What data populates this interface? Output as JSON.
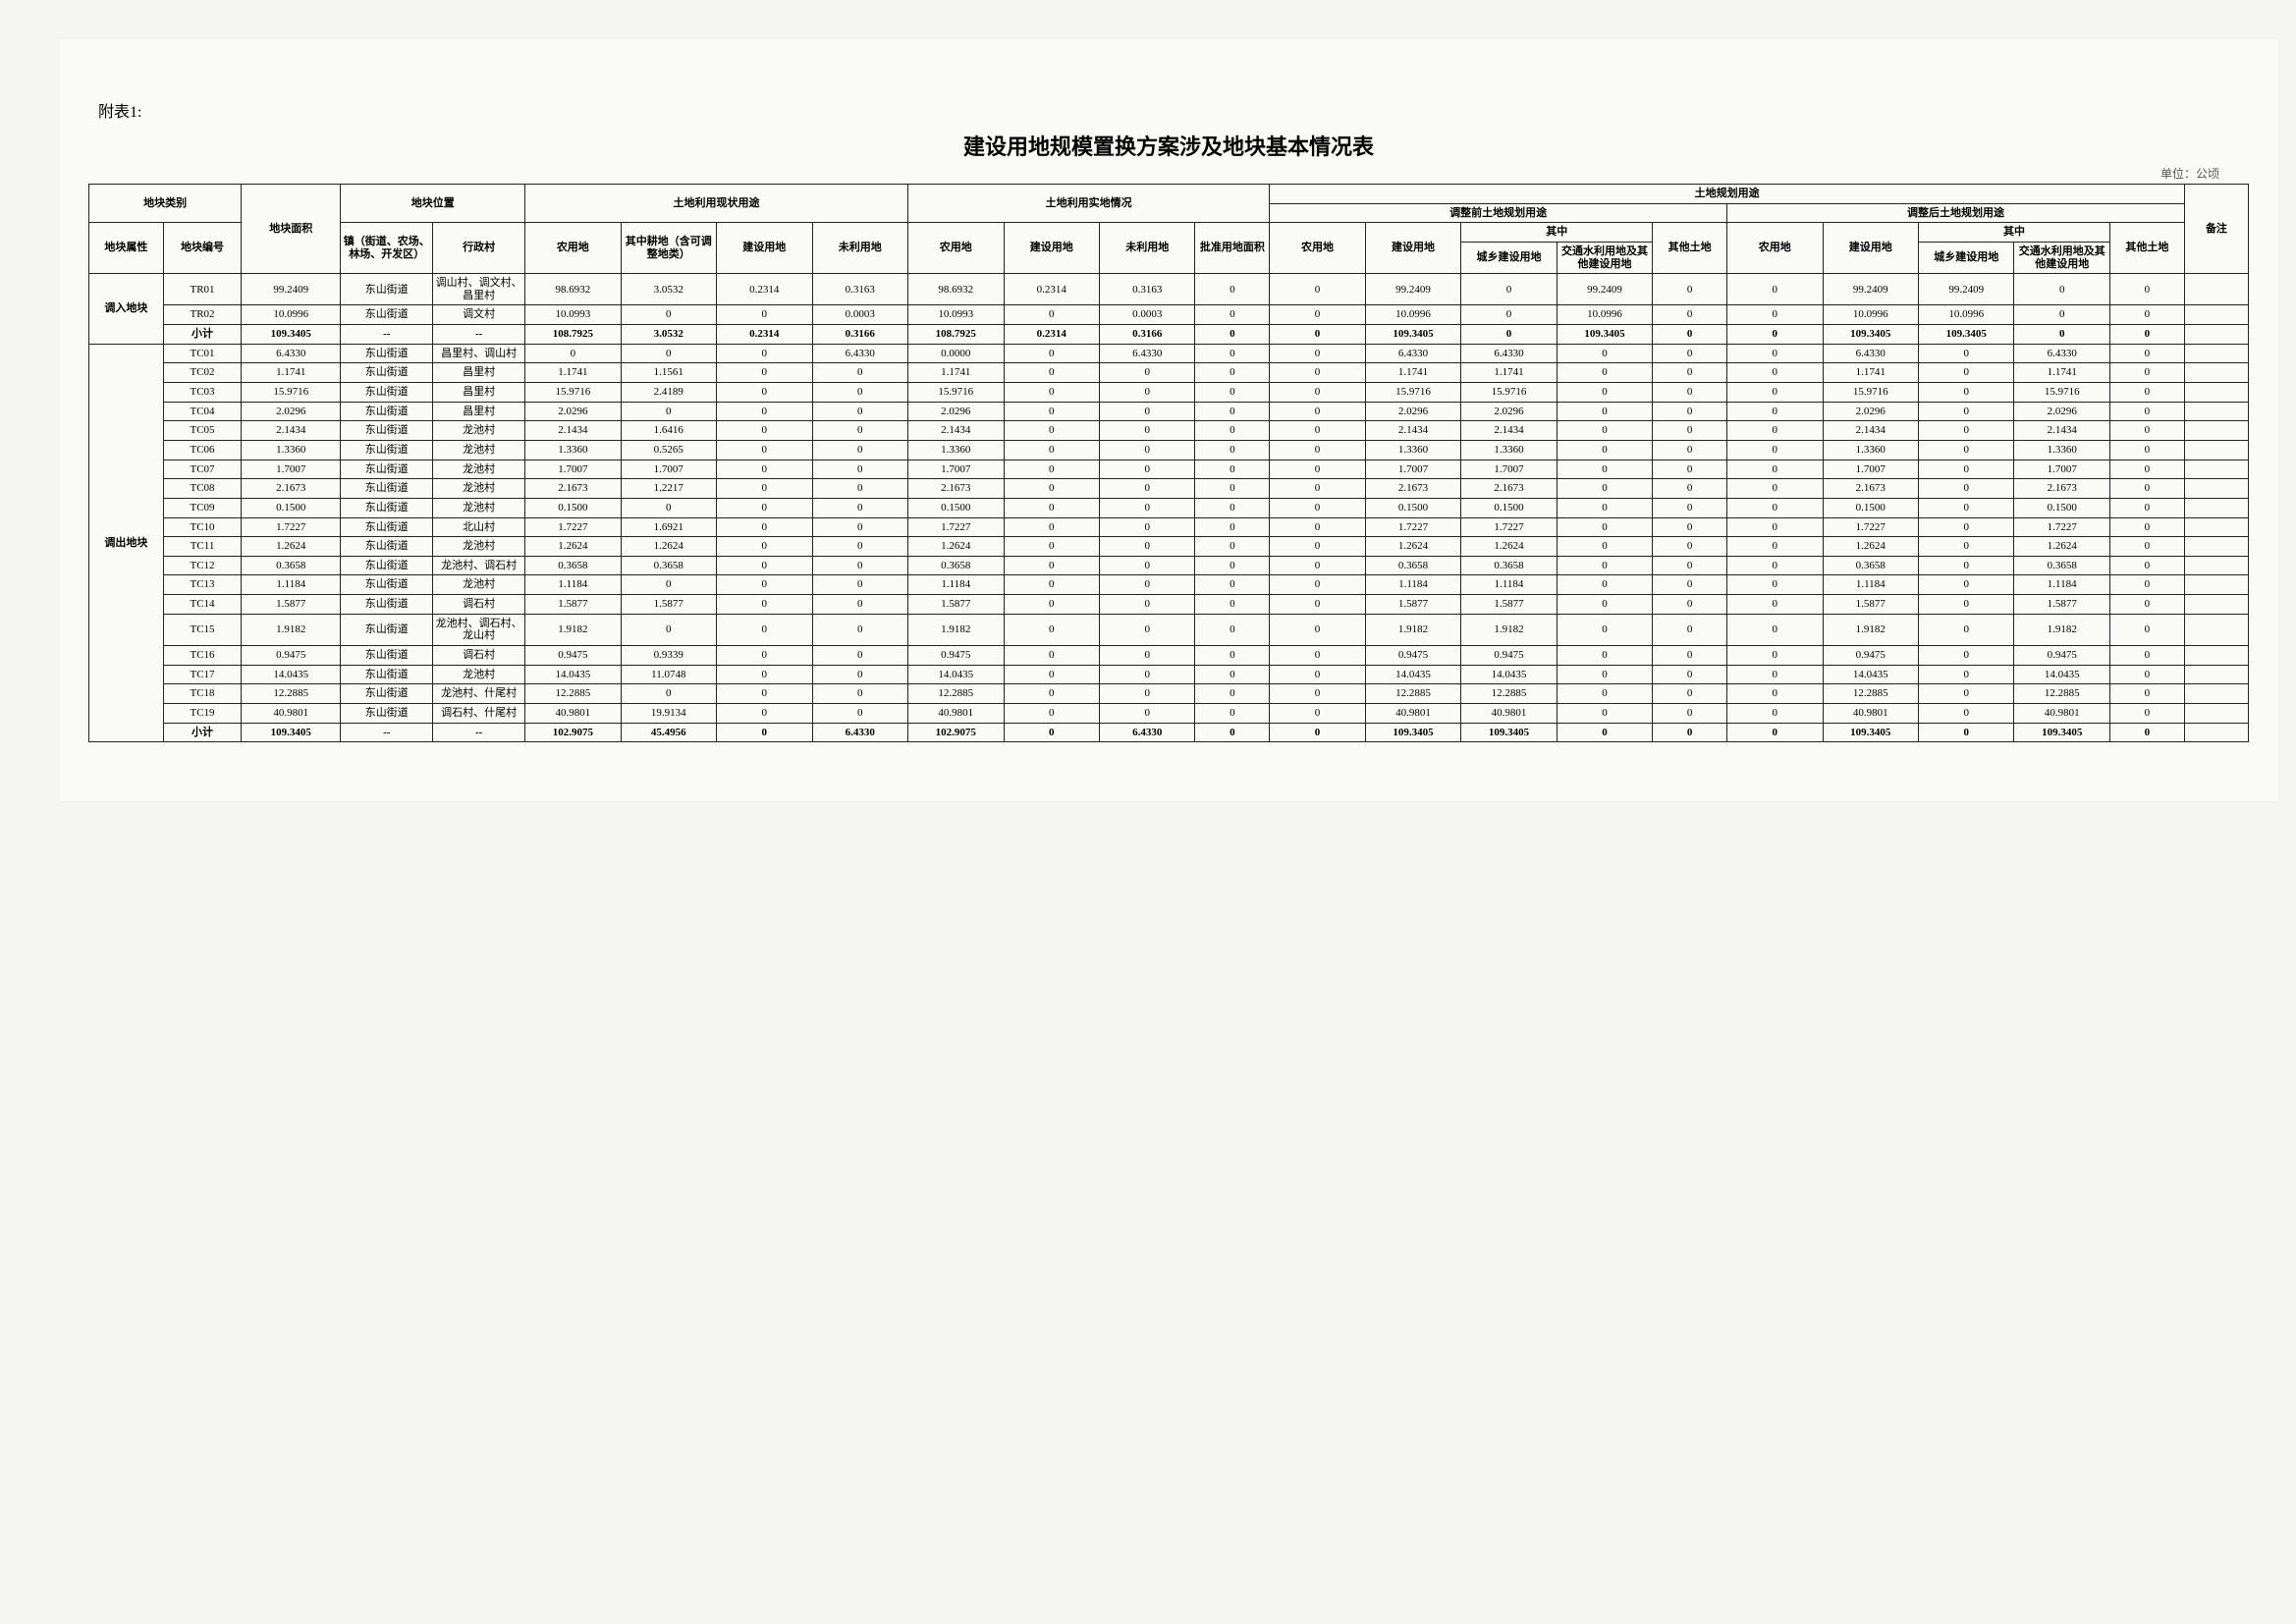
{
  "labels": {
    "attach": "附表1:",
    "title": "建设用地规模置换方案涉及地块基本情况表",
    "unit": "单位：公顷"
  },
  "headers": {
    "block_cat": "地块类别",
    "block_attr": "地块属性",
    "block_code": "地块编号",
    "block_area": "地块面积",
    "block_loc": "地块位置",
    "town": "镇（街道、农场、林场、开发区）",
    "village": "行政村",
    "use_status": "土地利用现状用途",
    "farm": "农用地",
    "farm_sub": "其中耕地（含可调整地类）",
    "cons": "建设用地",
    "unused": "未利用地",
    "actual": "土地利用实地情况",
    "approved": "批准用地面积",
    "plan": "土地规划用途",
    "plan_before": "调整前土地规划用途",
    "plan_after": "调整后土地规划用途",
    "of_which": "其中",
    "urban_cons": "城乡建设用地",
    "trans_water": "交通水利用地及其他建设用地",
    "other_land": "其他土地",
    "other_land2": "其他土地",
    "remark": "备注"
  },
  "groups": [
    {
      "label": "调入地块",
      "rows": [
        {
          "code": "TR01",
          "area": "99.2409",
          "town": "东山街道",
          "village": "调山村、调文村、昌里村",
          "r": [
            "98.6932",
            "3.0532",
            "0.2314",
            "0.3163",
            "98.6932",
            "0.2314",
            "0.3163",
            "0",
            "0",
            "99.2409",
            "0",
            "99.2409",
            "0",
            "0",
            "99.2409",
            "99.2409",
            "0",
            "0"
          ]
        },
        {
          "code": "TR02",
          "area": "10.0996",
          "town": "东山街道",
          "village": "调文村",
          "r": [
            "10.0993",
            "0",
            "0",
            "0.0003",
            "10.0993",
            "0",
            "0.0003",
            "0",
            "0",
            "10.0996",
            "0",
            "10.0996",
            "0",
            "0",
            "10.0996",
            "10.0996",
            "0",
            "0"
          ]
        }
      ],
      "subtotal": {
        "code": "小计",
        "area": "109.3405",
        "town": "--",
        "village": "--",
        "r": [
          "108.7925",
          "3.0532",
          "0.2314",
          "0.3166",
          "108.7925",
          "0.2314",
          "0.3166",
          "0",
          "0",
          "109.3405",
          "0",
          "109.3405",
          "0",
          "0",
          "109.3405",
          "109.3405",
          "0",
          "0"
        ]
      }
    },
    {
      "label": "调出地块",
      "rows": [
        {
          "code": "TC01",
          "area": "6.4330",
          "town": "东山街道",
          "village": "昌里村、调山村",
          "r": [
            "0",
            "0",
            "0",
            "6.4330",
            "0.0000",
            "0",
            "6.4330",
            "0",
            "0",
            "6.4330",
            "6.4330",
            "0",
            "0",
            "0",
            "6.4330",
            "0",
            "6.4330",
            "0"
          ]
        },
        {
          "code": "TC02",
          "area": "1.1741",
          "town": "东山街道",
          "village": "昌里村",
          "r": [
            "1.1741",
            "1.1561",
            "0",
            "0",
            "1.1741",
            "0",
            "0",
            "0",
            "0",
            "1.1741",
            "1.1741",
            "0",
            "0",
            "0",
            "1.1741",
            "0",
            "1.1741",
            "0"
          ]
        },
        {
          "code": "TC03",
          "area": "15.9716",
          "town": "东山街道",
          "village": "昌里村",
          "r": [
            "15.9716",
            "2.4189",
            "0",
            "0",
            "15.9716",
            "0",
            "0",
            "0",
            "0",
            "15.9716",
            "15.9716",
            "0",
            "0",
            "0",
            "15.9716",
            "0",
            "15.9716",
            "0"
          ]
        },
        {
          "code": "TC04",
          "area": "2.0296",
          "town": "东山街道",
          "village": "昌里村",
          "r": [
            "2.0296",
            "0",
            "0",
            "0",
            "2.0296",
            "0",
            "0",
            "0",
            "0",
            "2.0296",
            "2.0296",
            "0",
            "0",
            "0",
            "2.0296",
            "0",
            "2.0296",
            "0"
          ]
        },
        {
          "code": "TC05",
          "area": "2.1434",
          "town": "东山街道",
          "village": "龙池村",
          "r": [
            "2.1434",
            "1.6416",
            "0",
            "0",
            "2.1434",
            "0",
            "0",
            "0",
            "0",
            "2.1434",
            "2.1434",
            "0",
            "0",
            "0",
            "2.1434",
            "0",
            "2.1434",
            "0"
          ]
        },
        {
          "code": "TC06",
          "area": "1.3360",
          "town": "东山街道",
          "village": "龙池村",
          "r": [
            "1.3360",
            "0.5265",
            "0",
            "0",
            "1.3360",
            "0",
            "0",
            "0",
            "0",
            "1.3360",
            "1.3360",
            "0",
            "0",
            "0",
            "1.3360",
            "0",
            "1.3360",
            "0"
          ]
        },
        {
          "code": "TC07",
          "area": "1.7007",
          "town": "东山街道",
          "village": "龙池村",
          "r": [
            "1.7007",
            "1.7007",
            "0",
            "0",
            "1.7007",
            "0",
            "0",
            "0",
            "0",
            "1.7007",
            "1.7007",
            "0",
            "0",
            "0",
            "1.7007",
            "0",
            "1.7007",
            "0"
          ]
        },
        {
          "code": "TC08",
          "area": "2.1673",
          "town": "东山街道",
          "village": "龙池村",
          "r": [
            "2.1673",
            "1.2217",
            "0",
            "0",
            "2.1673",
            "0",
            "0",
            "0",
            "0",
            "2.1673",
            "2.1673",
            "0",
            "0",
            "0",
            "2.1673",
            "0",
            "2.1673",
            "0"
          ]
        },
        {
          "code": "TC09",
          "area": "0.1500",
          "town": "东山街道",
          "village": "龙池村",
          "r": [
            "0.1500",
            "0",
            "0",
            "0",
            "0.1500",
            "0",
            "0",
            "0",
            "0",
            "0.1500",
            "0.1500",
            "0",
            "0",
            "0",
            "0.1500",
            "0",
            "0.1500",
            "0"
          ]
        },
        {
          "code": "TC10",
          "area": "1.7227",
          "town": "东山街道",
          "village": "北山村",
          "r": [
            "1.7227",
            "1.6921",
            "0",
            "0",
            "1.7227",
            "0",
            "0",
            "0",
            "0",
            "1.7227",
            "1.7227",
            "0",
            "0",
            "0",
            "1.7227",
            "0",
            "1.7227",
            "0"
          ]
        },
        {
          "code": "TC11",
          "area": "1.2624",
          "town": "东山街道",
          "village": "龙池村",
          "r": [
            "1.2624",
            "1.2624",
            "0",
            "0",
            "1.2624",
            "0",
            "0",
            "0",
            "0",
            "1.2624",
            "1.2624",
            "0",
            "0",
            "0",
            "1.2624",
            "0",
            "1.2624",
            "0"
          ]
        },
        {
          "code": "TC12",
          "area": "0.3658",
          "town": "东山街道",
          "village": "龙池村、调石村",
          "r": [
            "0.3658",
            "0.3658",
            "0",
            "0",
            "0.3658",
            "0",
            "0",
            "0",
            "0",
            "0.3658",
            "0.3658",
            "0",
            "0",
            "0",
            "0.3658",
            "0",
            "0.3658",
            "0"
          ]
        },
        {
          "code": "TC13",
          "area": "1.1184",
          "town": "东山街道",
          "village": "龙池村",
          "r": [
            "1.1184",
            "0",
            "0",
            "0",
            "1.1184",
            "0",
            "0",
            "0",
            "0",
            "1.1184",
            "1.1184",
            "0",
            "0",
            "0",
            "1.1184",
            "0",
            "1.1184",
            "0"
          ]
        },
        {
          "code": "TC14",
          "area": "1.5877",
          "town": "东山街道",
          "village": "调石村",
          "r": [
            "1.5877",
            "1.5877",
            "0",
            "0",
            "1.5877",
            "0",
            "0",
            "0",
            "0",
            "1.5877",
            "1.5877",
            "0",
            "0",
            "0",
            "1.5877",
            "0",
            "1.5877",
            "0"
          ]
        },
        {
          "code": "TC15",
          "area": "1.9182",
          "town": "东山街道",
          "village": "龙池村、调石村、龙山村",
          "r": [
            "1.9182",
            "0",
            "0",
            "0",
            "1.9182",
            "0",
            "0",
            "0",
            "0",
            "1.9182",
            "1.9182",
            "0",
            "0",
            "0",
            "1.9182",
            "0",
            "1.9182",
            "0"
          ]
        },
        {
          "code": "TC16",
          "area": "0.9475",
          "town": "东山街道",
          "village": "调石村",
          "r": [
            "0.9475",
            "0.9339",
            "0",
            "0",
            "0.9475",
            "0",
            "0",
            "0",
            "0",
            "0.9475",
            "0.9475",
            "0",
            "0",
            "0",
            "0.9475",
            "0",
            "0.9475",
            "0"
          ]
        },
        {
          "code": "TC17",
          "area": "14.0435",
          "town": "东山街道",
          "village": "龙池村",
          "r": [
            "14.0435",
            "11.0748",
            "0",
            "0",
            "14.0435",
            "0",
            "0",
            "0",
            "0",
            "14.0435",
            "14.0435",
            "0",
            "0",
            "0",
            "14.0435",
            "0",
            "14.0435",
            "0"
          ]
        },
        {
          "code": "TC18",
          "area": "12.2885",
          "town": "东山街道",
          "village": "龙池村、什尾村",
          "r": [
            "12.2885",
            "0",
            "0",
            "0",
            "12.2885",
            "0",
            "0",
            "0",
            "0",
            "12.2885",
            "12.2885",
            "0",
            "0",
            "0",
            "12.2885",
            "0",
            "12.2885",
            "0"
          ]
        },
        {
          "code": "TC19",
          "area": "40.9801",
          "town": "东山街道",
          "village": "调石村、什尾村",
          "r": [
            "40.9801",
            "19.9134",
            "0",
            "0",
            "40.9801",
            "0",
            "0",
            "0",
            "0",
            "40.9801",
            "40.9801",
            "0",
            "0",
            "0",
            "40.9801",
            "0",
            "40.9801",
            "0"
          ]
        }
      ],
      "subtotal": {
        "code": "小计",
        "area": "109.3405",
        "town": "--",
        "village": "--",
        "r": [
          "102.9075",
          "45.4956",
          "0",
          "6.4330",
          "102.9075",
          "0",
          "6.4330",
          "0",
          "0",
          "109.3405",
          "109.3405",
          "0",
          "0",
          "0",
          "109.3405",
          "0",
          "109.3405",
          "0"
        ]
      }
    }
  ]
}
